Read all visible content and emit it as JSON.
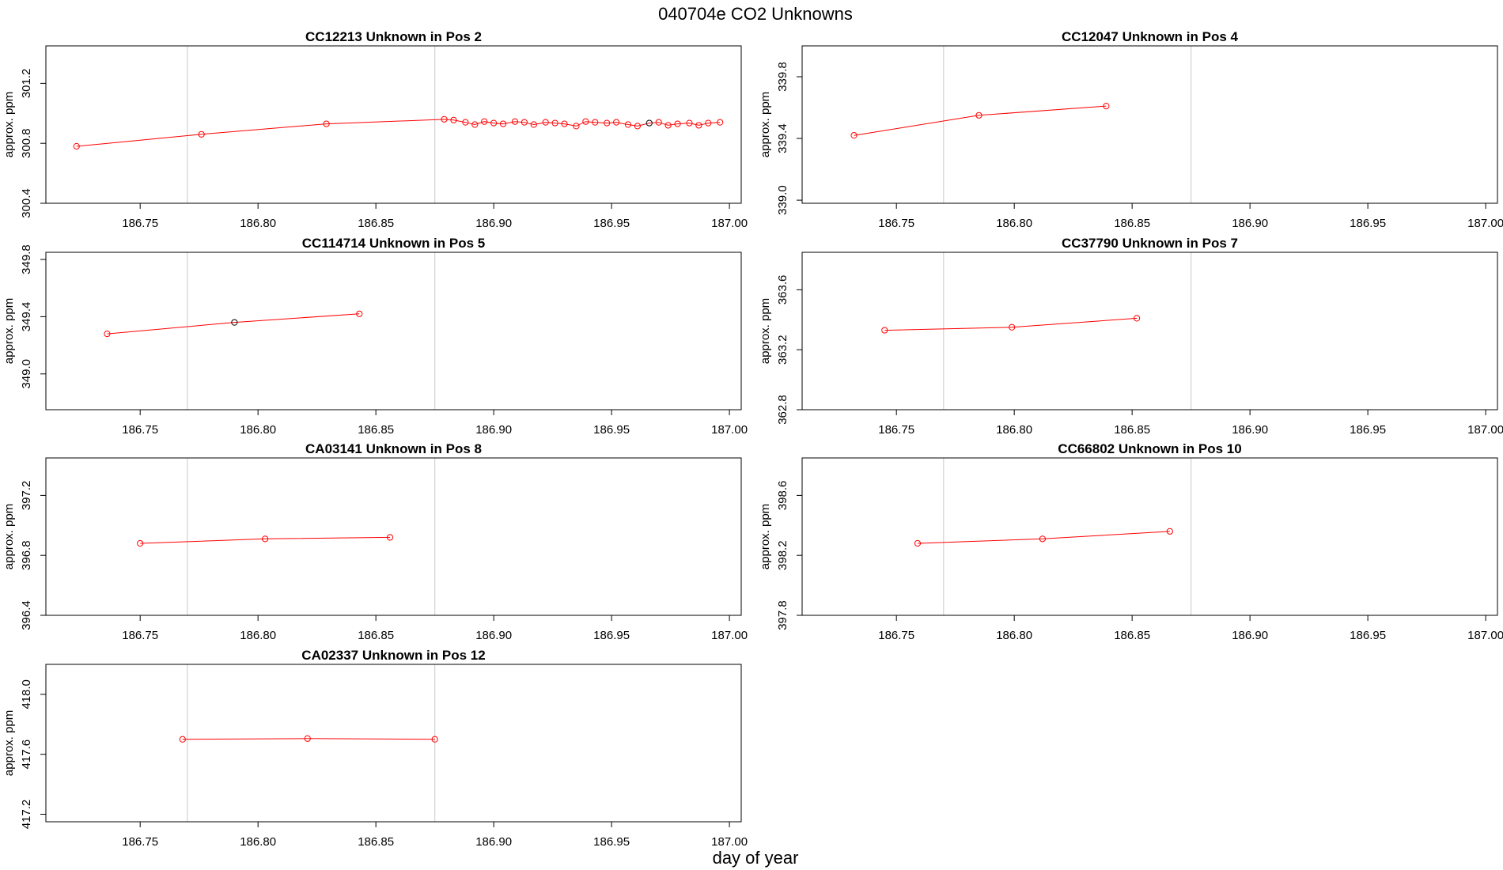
{
  "title": "040704e  CO2 Unknowns",
  "xlabel": "day of year",
  "colors": {
    "series": "#ff0000",
    "highlight": "#000000",
    "vline": "#d3d3d3"
  },
  "chart_data": [
    {
      "type": "line",
      "title": "CC12213    Unknown in Pos 2",
      "ylabel": "approx. ppm",
      "xlim": [
        186.71,
        187.005
      ],
      "ylim": [
        300.4,
        301.45
      ],
      "xticks": [
        186.75,
        186.8,
        186.85,
        186.9,
        186.95,
        187.0
      ],
      "xtick_labels": [
        "186.75",
        "186.80",
        "186.85",
        "186.90",
        "186.95",
        "187.00"
      ],
      "yticks": [
        300.4,
        300.8,
        301.2
      ],
      "ytick_labels": [
        "300.4",
        "300.8",
        "301.2"
      ],
      "vlines": [
        186.77,
        186.875
      ],
      "x": [
        186.723,
        186.776,
        186.829,
        186.879,
        186.883,
        186.888,
        186.892,
        186.896,
        186.9,
        186.904,
        186.909,
        186.913,
        186.917,
        186.922,
        186.926,
        186.93,
        186.935,
        186.939,
        186.943,
        186.948,
        186.952,
        186.957,
        186.961,
        186.966,
        186.97,
        186.974,
        186.978,
        186.983,
        186.987,
        186.991,
        186.996
      ],
      "y": [
        300.78,
        300.86,
        300.93,
        300.96,
        300.955,
        300.94,
        300.925,
        300.945,
        300.935,
        300.93,
        300.945,
        300.94,
        300.925,
        300.94,
        300.935,
        300.93,
        300.915,
        300.945,
        300.94,
        300.935,
        300.94,
        300.925,
        300.915,
        300.935,
        300.94,
        300.92,
        300.93,
        300.935,
        300.92,
        300.935,
        300.94
      ],
      "highlight_index": 23
    },
    {
      "type": "line",
      "title": "CC12047    Unknown in Pos 4",
      "ylabel": "approx. ppm",
      "xlim": [
        186.71,
        187.005
      ],
      "ylim": [
        338.98,
        340.0
      ],
      "xticks": [
        186.75,
        186.8,
        186.85,
        186.9,
        186.95,
        187.0
      ],
      "xtick_labels": [
        "186.75",
        "186.80",
        "186.85",
        "186.90",
        "186.95",
        "187.00"
      ],
      "yticks": [
        339.0,
        339.4,
        339.8
      ],
      "ytick_labels": [
        "339.0",
        "339.4",
        "339.8"
      ],
      "vlines": [
        186.77,
        186.875
      ],
      "x": [
        186.732,
        186.785,
        186.839
      ],
      "y": [
        339.42,
        339.55,
        339.61
      ],
      "highlight_index": null
    },
    {
      "type": "line",
      "title": "CC114714    Unknown in Pos 5",
      "ylabel": "approx. ppm",
      "xlim": [
        186.71,
        187.005
      ],
      "ylim": [
        348.75,
        349.85
      ],
      "xticks": [
        186.75,
        186.8,
        186.85,
        186.9,
        186.95,
        187.0
      ],
      "xtick_labels": [
        "186.75",
        "186.80",
        "186.85",
        "186.90",
        "186.95",
        "187.00"
      ],
      "yticks": [
        349.0,
        349.4,
        349.8
      ],
      "ytick_labels": [
        "349.0",
        "349.4",
        "349.8"
      ],
      "vlines": [
        186.77,
        186.875
      ],
      "x": [
        186.736,
        186.79,
        186.843
      ],
      "y": [
        349.28,
        349.36,
        349.42
      ],
      "highlight_index": 1
    },
    {
      "type": "line",
      "title": "CC37790    Unknown in Pos 7",
      "ylabel": "approx. ppm",
      "xlim": [
        186.71,
        187.005
      ],
      "ylim": [
        362.8,
        363.85
      ],
      "xticks": [
        186.75,
        186.8,
        186.85,
        186.9,
        186.95,
        187.0
      ],
      "xtick_labels": [
        "186.75",
        "186.80",
        "186.85",
        "186.90",
        "186.95",
        "187.00"
      ],
      "yticks": [
        362.8,
        363.2,
        363.6
      ],
      "ytick_labels": [
        "362.8",
        "363.2",
        "363.6"
      ],
      "vlines": [
        186.77,
        186.875
      ],
      "x": [
        186.745,
        186.799,
        186.852
      ],
      "y": [
        363.33,
        363.35,
        363.41
      ],
      "highlight_index": null
    },
    {
      "type": "line",
      "title": "CA03141    Unknown in Pos 8",
      "ylabel": "approx. ppm",
      "xlim": [
        186.71,
        187.005
      ],
      "ylim": [
        396.4,
        397.45
      ],
      "xticks": [
        186.75,
        186.8,
        186.85,
        186.9,
        186.95,
        187.0
      ],
      "xtick_labels": [
        "186.75",
        "186.80",
        "186.85",
        "186.90",
        "186.95",
        "187.00"
      ],
      "yticks": [
        396.4,
        396.8,
        397.2
      ],
      "ytick_labels": [
        "396.4",
        "396.8",
        "397.2"
      ],
      "vlines": [
        186.77,
        186.875
      ],
      "x": [
        186.75,
        186.803,
        186.856
      ],
      "y": [
        396.88,
        396.91,
        396.92
      ],
      "highlight_index": null
    },
    {
      "type": "line",
      "title": "CC66802    Unknown in Pos 10",
      "ylabel": "approx. ppm",
      "xlim": [
        186.71,
        187.005
      ],
      "ylim": [
        397.8,
        398.85
      ],
      "xticks": [
        186.75,
        186.8,
        186.85,
        186.9,
        186.95,
        187.0
      ],
      "xtick_labels": [
        "186.75",
        "186.80",
        "186.85",
        "186.90",
        "186.95",
        "187.00"
      ],
      "yticks": [
        397.8,
        398.2,
        398.6
      ],
      "ytick_labels": [
        "397.8",
        "398.2",
        "398.6"
      ],
      "vlines": [
        186.77,
        186.875
      ],
      "x": [
        186.759,
        186.812,
        186.866
      ],
      "y": [
        398.28,
        398.31,
        398.36
      ],
      "highlight_index": null
    },
    {
      "type": "line",
      "title": "CA02337    Unknown in Pos 12",
      "ylabel": "approx. ppm",
      "xlim": [
        186.71,
        187.005
      ],
      "ylim": [
        417.15,
        418.2
      ],
      "xticks": [
        186.75,
        186.8,
        186.85,
        186.9,
        186.95,
        187.0
      ],
      "xtick_labels": [
        "186.75",
        "186.80",
        "186.85",
        "186.90",
        "186.95",
        "187.00"
      ],
      "yticks": [
        417.2,
        417.6,
        418.0
      ],
      "ytick_labels": [
        "417.2",
        "417.6",
        "418.0"
      ],
      "vlines": [
        186.77,
        186.875
      ],
      "x": [
        186.768,
        186.821,
        186.875
      ],
      "y": [
        417.7,
        417.705,
        417.7
      ],
      "highlight_index": null
    }
  ]
}
